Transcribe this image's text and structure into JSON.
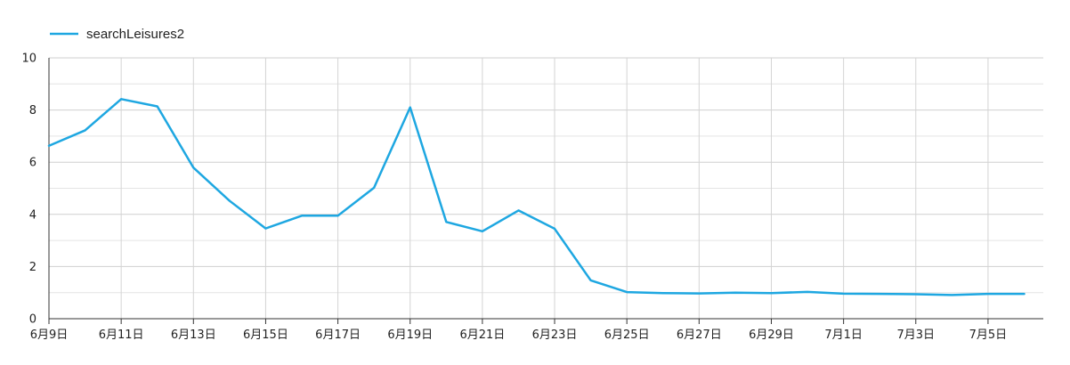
{
  "chart_data": {
    "type": "line",
    "x": [
      "6月9日",
      "6月10日",
      "6月11日",
      "6月12日",
      "6月13日",
      "6月14日",
      "6月15日",
      "6月16日",
      "6月17日",
      "6月18日",
      "6月19日",
      "6月20日",
      "6月21日",
      "6月22日",
      "6月23日",
      "6月24日",
      "6月25日",
      "6月26日",
      "6月27日",
      "6月28日",
      "6月29日",
      "6月30日",
      "7月1日",
      "7月2日",
      "7月3日",
      "7月4日",
      "7月5日",
      "7月6日"
    ],
    "x_tick_labels": [
      "6月9日",
      "6月11日",
      "6月13日",
      "6月15日",
      "6月17日",
      "6月19日",
      "6月21日",
      "6月23日",
      "6月25日",
      "6月27日",
      "6月29日",
      "7月1日",
      "7月3日",
      "7月5日"
    ],
    "series": [
      {
        "name": "searchLeisures2",
        "color": "#1ea7e1",
        "values": [
          6.63,
          7.22,
          8.42,
          8.14,
          5.79,
          4.52,
          3.46,
          3.95,
          3.95,
          5.02,
          8.1,
          3.71,
          3.35,
          4.15,
          3.45,
          1.47,
          1.02,
          0.98,
          0.97,
          1.0,
          0.98,
          1.03,
          0.96,
          0.95,
          0.94,
          0.91,
          0.95,
          0.95
        ]
      }
    ],
    "ylim": [
      0,
      10
    ],
    "y_ticks": [
      0,
      2,
      4,
      6,
      8,
      10
    ],
    "grid": true,
    "legend": "top-left"
  }
}
